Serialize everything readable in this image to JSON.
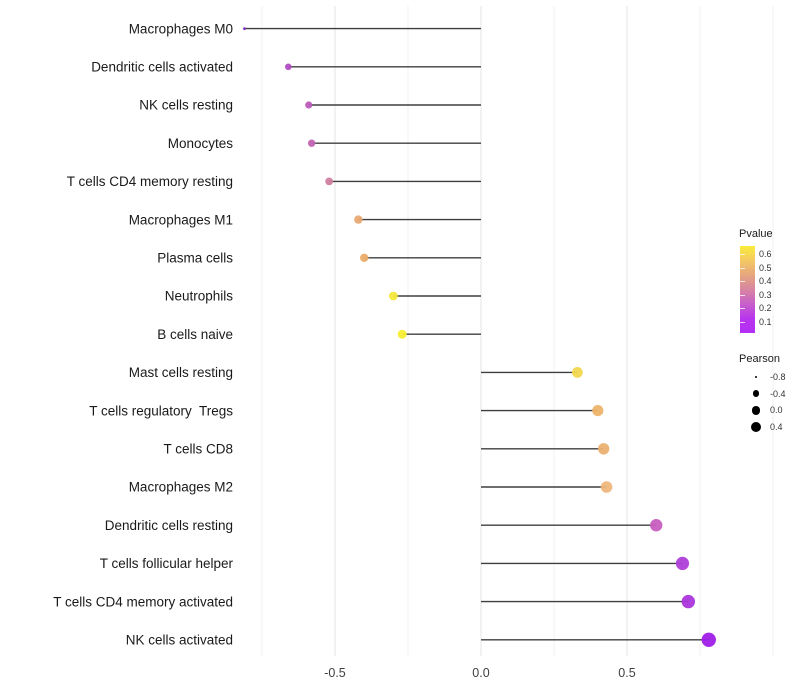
{
  "chart_data": {
    "type": "lollipop",
    "orientation": "horizontal",
    "title": "",
    "xlabel": "",
    "ylabel": "",
    "xlim": [
      -0.85,
      1.05
    ],
    "x_tick_labels": [
      "-0.5",
      "0.0",
      "0.5"
    ],
    "x_tick_values": [
      -0.5,
      0.0,
      0.5
    ],
    "grid_major": [
      -0.5,
      0.0,
      0.5
    ],
    "grid_minor": [
      -0.75,
      -0.25,
      0.25,
      0.75,
      1.0
    ],
    "grid_on": true,
    "baseline_x": 0.0,
    "points": [
      {
        "label": "Macrophages M0",
        "pearson": -0.81,
        "point_color": "#7a24c9",
        "radius": 1.4
      },
      {
        "label": "Dendritic cells activated",
        "pearson": -0.66,
        "point_color": "#b24cc3",
        "radius": 3.3
      },
      {
        "label": "NK cells resting",
        "pearson": -0.59,
        "point_color": "#bd5cbc",
        "radius": 3.6
      },
      {
        "label": "Monocytes",
        "pearson": -0.58,
        "point_color": "#c264b2",
        "radius": 3.7
      },
      {
        "label": "T cells CD4 memory resting",
        "pearson": -0.52,
        "point_color": "#cf7f9f",
        "radius": 3.9
      },
      {
        "label": "Macrophages M1",
        "pearson": -0.42,
        "point_color": "#e9a973",
        "radius": 4.2
      },
      {
        "label": "Plasma cells",
        "pearson": -0.4,
        "point_color": "#ebac6c",
        "radius": 4.2
      },
      {
        "label": "Neutrophils",
        "pearson": -0.3,
        "point_color": "#f4e93b",
        "radius": 4.4
      },
      {
        "label": "B cells naive",
        "pearson": -0.27,
        "point_color": "#f6ee33",
        "radius": 4.5
      },
      {
        "label": "Mast cells resting",
        "pearson": 0.33,
        "point_color": "#f2d74f",
        "radius": 5.4
      },
      {
        "label": "T cells regulatory  Tregs",
        "pearson": 0.4,
        "point_color": "#edb46a",
        "radius": 5.6
      },
      {
        "label": "T cells CD8",
        "pearson": 0.42,
        "point_color": "#ebb170",
        "radius": 5.7
      },
      {
        "label": "Macrophages M2",
        "pearson": 0.43,
        "point_color": "#efb67e",
        "radius": 5.8
      },
      {
        "label": "Dendritic cells resting",
        "pearson": 0.6,
        "point_color": "#c75fc0",
        "radius": 6.2
      },
      {
        "label": "T cells follicular helper",
        "pearson": 0.69,
        "point_color": "#af3fd9",
        "radius": 6.6
      },
      {
        "label": "T cells CD4 memory activated",
        "pearson": 0.71,
        "point_color": "#ab36dc",
        "radius": 6.7
      },
      {
        "label": "NK cells activated",
        "pearson": 0.78,
        "point_color": "#a01ee8",
        "radius": 7.2
      }
    ],
    "legend": {
      "pvalue": {
        "title": "Pvalue",
        "tick_labels": [
          "0.6",
          "0.5",
          "0.4",
          "0.3",
          "0.2",
          "0.1"
        ],
        "gradient_top_to_bottom": [
          "#faec3a",
          "#f4c964",
          "#e6a67e",
          "#d885a2",
          "#c75fca",
          "#b835ee",
          "#b32ff4"
        ]
      },
      "pearson": {
        "title": "Pearson",
        "items": [
          {
            "value": "-0.8",
            "radius": 1.4
          },
          {
            "value": "-0.4",
            "radius": 3.3
          },
          {
            "value": "0.0",
            "radius": 4.3
          },
          {
            "value": "0.4",
            "radius": 5.0
          }
        ]
      }
    },
    "style": {
      "stem_color": "#3f3f3f",
      "grid_major_color": "#e6e6e6",
      "grid_minor_color": "#f2f2f2",
      "category_label_color": "#1a1a1a",
      "axis_tick_color": "#404040",
      "background": "#ffffff"
    }
  }
}
